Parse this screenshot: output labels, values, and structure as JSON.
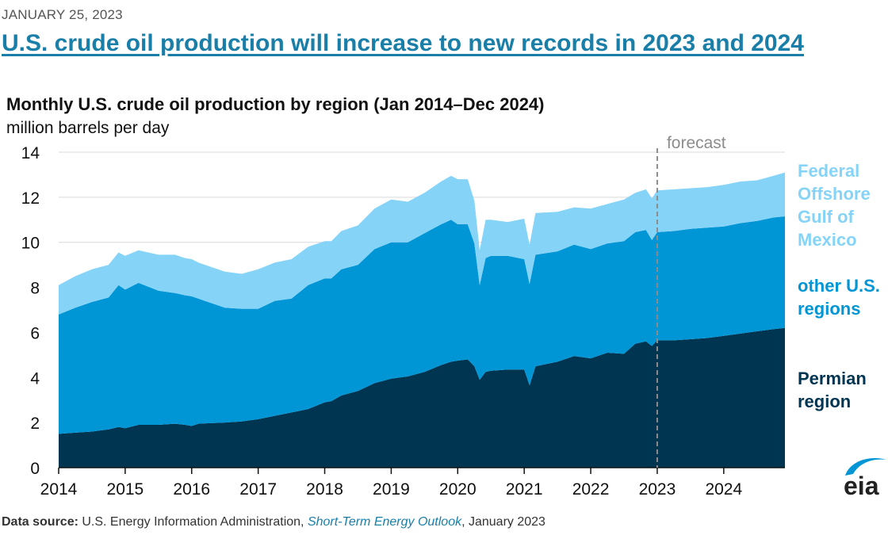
{
  "header": {
    "date": "JANUARY 25, 2023",
    "headline": "U.S. crude oil production will increase to new records in 2023 and 2024"
  },
  "logo_text": "eia",
  "footer": {
    "source_label": "Data source:",
    "source_text": " U.S. Energy Information Administration, ",
    "source_link": "Short-Term Energy Outlook",
    "source_date": ", January 2023"
  },
  "chart_data": {
    "type": "area",
    "stacked": true,
    "title": "Monthly U.S. crude oil production by region (Jan 2014–Dec 2024)",
    "ylabel": "million barrels per day",
    "xlabel": "",
    "ylim": [
      0,
      14
    ],
    "yticks": [
      "0",
      "2",
      "4",
      "6",
      "8",
      "10",
      "12",
      "14"
    ],
    "xticks": [
      "2014",
      "2015",
      "2016",
      "2017",
      "2018",
      "2019",
      "2020",
      "2021",
      "2022",
      "2023",
      "2024"
    ],
    "grid": true,
    "forecast_label": "forecast",
    "forecast_start": 2023.0,
    "x_units": "year",
    "series": [
      {
        "name": "Permian region",
        "label_lines": [
          "Permian",
          "region"
        ],
        "color": "#003552",
        "points": [
          [
            2014.0,
            1.5
          ],
          [
            2014.25,
            1.55
          ],
          [
            2014.5,
            1.6
          ],
          [
            2014.75,
            1.7
          ],
          [
            2014.9,
            1.8
          ],
          [
            2015.0,
            1.75
          ],
          [
            2015.2,
            1.9
          ],
          [
            2015.5,
            1.9
          ],
          [
            2015.75,
            1.95
          ],
          [
            2015.9,
            1.9
          ],
          [
            2016.0,
            1.85
          ],
          [
            2016.1,
            1.95
          ],
          [
            2016.5,
            2.0
          ],
          [
            2016.75,
            2.05
          ],
          [
            2017.0,
            2.15
          ],
          [
            2017.25,
            2.3
          ],
          [
            2017.5,
            2.45
          ],
          [
            2017.75,
            2.6
          ],
          [
            2018.0,
            2.9
          ],
          [
            2018.1,
            2.95
          ],
          [
            2018.25,
            3.2
          ],
          [
            2018.5,
            3.4
          ],
          [
            2018.75,
            3.75
          ],
          [
            2019.0,
            3.95
          ],
          [
            2019.25,
            4.05
          ],
          [
            2019.5,
            4.25
          ],
          [
            2019.75,
            4.55
          ],
          [
            2019.9,
            4.7
          ],
          [
            2020.0,
            4.75
          ],
          [
            2020.15,
            4.8
          ],
          [
            2020.25,
            4.5
          ],
          [
            2020.33,
            3.9
          ],
          [
            2020.42,
            4.25
          ],
          [
            2020.5,
            4.3
          ],
          [
            2020.75,
            4.35
          ],
          [
            2021.0,
            4.35
          ],
          [
            2021.08,
            3.65
          ],
          [
            2021.17,
            4.5
          ],
          [
            2021.5,
            4.7
          ],
          [
            2021.75,
            4.95
          ],
          [
            2022.0,
            4.85
          ],
          [
            2022.25,
            5.1
          ],
          [
            2022.5,
            5.05
          ],
          [
            2022.67,
            5.5
          ],
          [
            2022.83,
            5.6
          ],
          [
            2022.92,
            5.4
          ],
          [
            2023.0,
            5.65
          ],
          [
            2023.25,
            5.65
          ],
          [
            2023.5,
            5.7
          ],
          [
            2023.75,
            5.75
          ],
          [
            2024.0,
            5.85
          ],
          [
            2024.25,
            5.95
          ],
          [
            2024.5,
            6.05
          ],
          [
            2024.75,
            6.15
          ],
          [
            2024.92,
            6.2
          ]
        ]
      },
      {
        "name": "other U.S. regions",
        "label_lines": [
          "other U.S.",
          "regions"
        ],
        "color": "#0096d6",
        "points": [
          [
            2014.0,
            5.3
          ],
          [
            2014.25,
            5.55
          ],
          [
            2014.5,
            5.75
          ],
          [
            2014.75,
            5.85
          ],
          [
            2014.9,
            6.3
          ],
          [
            2015.0,
            6.15
          ],
          [
            2015.2,
            6.3
          ],
          [
            2015.5,
            5.95
          ],
          [
            2015.75,
            5.8
          ],
          [
            2015.9,
            5.75
          ],
          [
            2016.0,
            5.75
          ],
          [
            2016.1,
            5.55
          ],
          [
            2016.5,
            5.1
          ],
          [
            2016.75,
            5.0
          ],
          [
            2017.0,
            4.9
          ],
          [
            2017.25,
            5.1
          ],
          [
            2017.5,
            5.05
          ],
          [
            2017.75,
            5.5
          ],
          [
            2018.0,
            5.5
          ],
          [
            2018.1,
            5.45
          ],
          [
            2018.25,
            5.6
          ],
          [
            2018.5,
            5.6
          ],
          [
            2018.75,
            5.95
          ],
          [
            2019.0,
            6.05
          ],
          [
            2019.25,
            5.95
          ],
          [
            2019.5,
            6.15
          ],
          [
            2019.75,
            6.25
          ],
          [
            2019.9,
            6.3
          ],
          [
            2020.0,
            6.05
          ],
          [
            2020.15,
            6.0
          ],
          [
            2020.25,
            5.45
          ],
          [
            2020.33,
            4.2
          ],
          [
            2020.42,
            5.05
          ],
          [
            2020.5,
            5.1
          ],
          [
            2020.75,
            5.05
          ],
          [
            2021.0,
            4.9
          ],
          [
            2021.08,
            4.5
          ],
          [
            2021.17,
            4.95
          ],
          [
            2021.5,
            4.9
          ],
          [
            2021.75,
            4.95
          ],
          [
            2022.0,
            4.85
          ],
          [
            2022.25,
            4.85
          ],
          [
            2022.5,
            5.0
          ],
          [
            2022.67,
            4.95
          ],
          [
            2022.83,
            4.95
          ],
          [
            2022.92,
            4.7
          ],
          [
            2023.0,
            4.8
          ],
          [
            2023.25,
            4.85
          ],
          [
            2023.5,
            4.9
          ],
          [
            2023.75,
            4.9
          ],
          [
            2024.0,
            4.85
          ],
          [
            2024.25,
            4.9
          ],
          [
            2024.5,
            4.9
          ],
          [
            2024.75,
            4.95
          ],
          [
            2024.92,
            4.95
          ]
        ]
      },
      {
        "name": "Federal Offshore Gulf of Mexico",
        "label_lines": [
          "Federal",
          "Offshore",
          "Gulf of",
          "Mexico"
        ],
        "color": "#85d4f8",
        "points": [
          [
            2014.0,
            1.3
          ],
          [
            2014.25,
            1.4
          ],
          [
            2014.5,
            1.45
          ],
          [
            2014.75,
            1.45
          ],
          [
            2014.9,
            1.45
          ],
          [
            2015.0,
            1.5
          ],
          [
            2015.2,
            1.45
          ],
          [
            2015.5,
            1.6
          ],
          [
            2015.75,
            1.7
          ],
          [
            2015.9,
            1.65
          ],
          [
            2016.0,
            1.65
          ],
          [
            2016.1,
            1.6
          ],
          [
            2016.5,
            1.6
          ],
          [
            2016.75,
            1.55
          ],
          [
            2017.0,
            1.75
          ],
          [
            2017.25,
            1.7
          ],
          [
            2017.5,
            1.75
          ],
          [
            2017.75,
            1.7
          ],
          [
            2018.0,
            1.65
          ],
          [
            2018.1,
            1.65
          ],
          [
            2018.25,
            1.7
          ],
          [
            2018.5,
            1.75
          ],
          [
            2018.75,
            1.8
          ],
          [
            2019.0,
            1.9
          ],
          [
            2019.25,
            1.8
          ],
          [
            2019.5,
            1.8
          ],
          [
            2019.75,
            1.9
          ],
          [
            2019.9,
            1.95
          ],
          [
            2020.0,
            2.0
          ],
          [
            2020.15,
            2.0
          ],
          [
            2020.25,
            1.9
          ],
          [
            2020.33,
            1.55
          ],
          [
            2020.42,
            1.7
          ],
          [
            2020.5,
            1.6
          ],
          [
            2020.75,
            1.5
          ],
          [
            2021.0,
            1.8
          ],
          [
            2021.08,
            1.75
          ],
          [
            2021.17,
            1.85
          ],
          [
            2021.5,
            1.75
          ],
          [
            2021.75,
            1.65
          ],
          [
            2022.0,
            1.8
          ],
          [
            2022.25,
            1.75
          ],
          [
            2022.5,
            1.85
          ],
          [
            2022.67,
            1.75
          ],
          [
            2022.83,
            1.8
          ],
          [
            2022.92,
            1.85
          ],
          [
            2023.0,
            1.85
          ],
          [
            2023.25,
            1.85
          ],
          [
            2023.5,
            1.8
          ],
          [
            2023.75,
            1.8
          ],
          [
            2024.0,
            1.85
          ],
          [
            2024.25,
            1.85
          ],
          [
            2024.5,
            1.8
          ],
          [
            2024.75,
            1.85
          ],
          [
            2024.92,
            1.95
          ]
        ]
      }
    ]
  }
}
